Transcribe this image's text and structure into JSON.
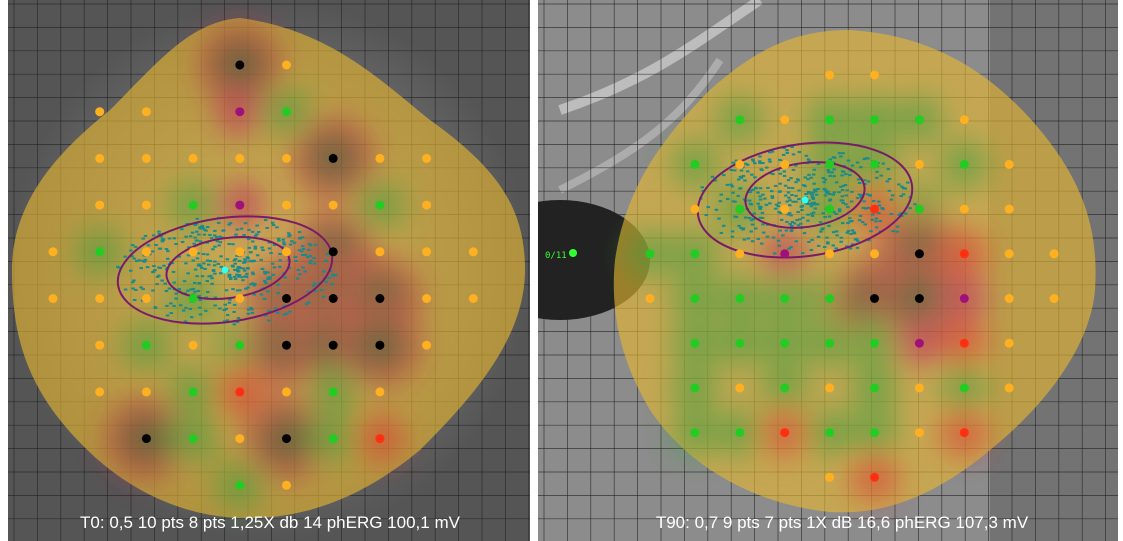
{
  "panels": [
    {
      "caption": "T0: 0,5 10 pts 8 pts 1,25X db 14 phERG 100,1 mV"
    },
    {
      "caption": "T90: 0,7 9 pts 7 pts 1X dB 16,6 phERG 107,3 mV",
      "marker_label": "0/11"
    }
  ]
}
